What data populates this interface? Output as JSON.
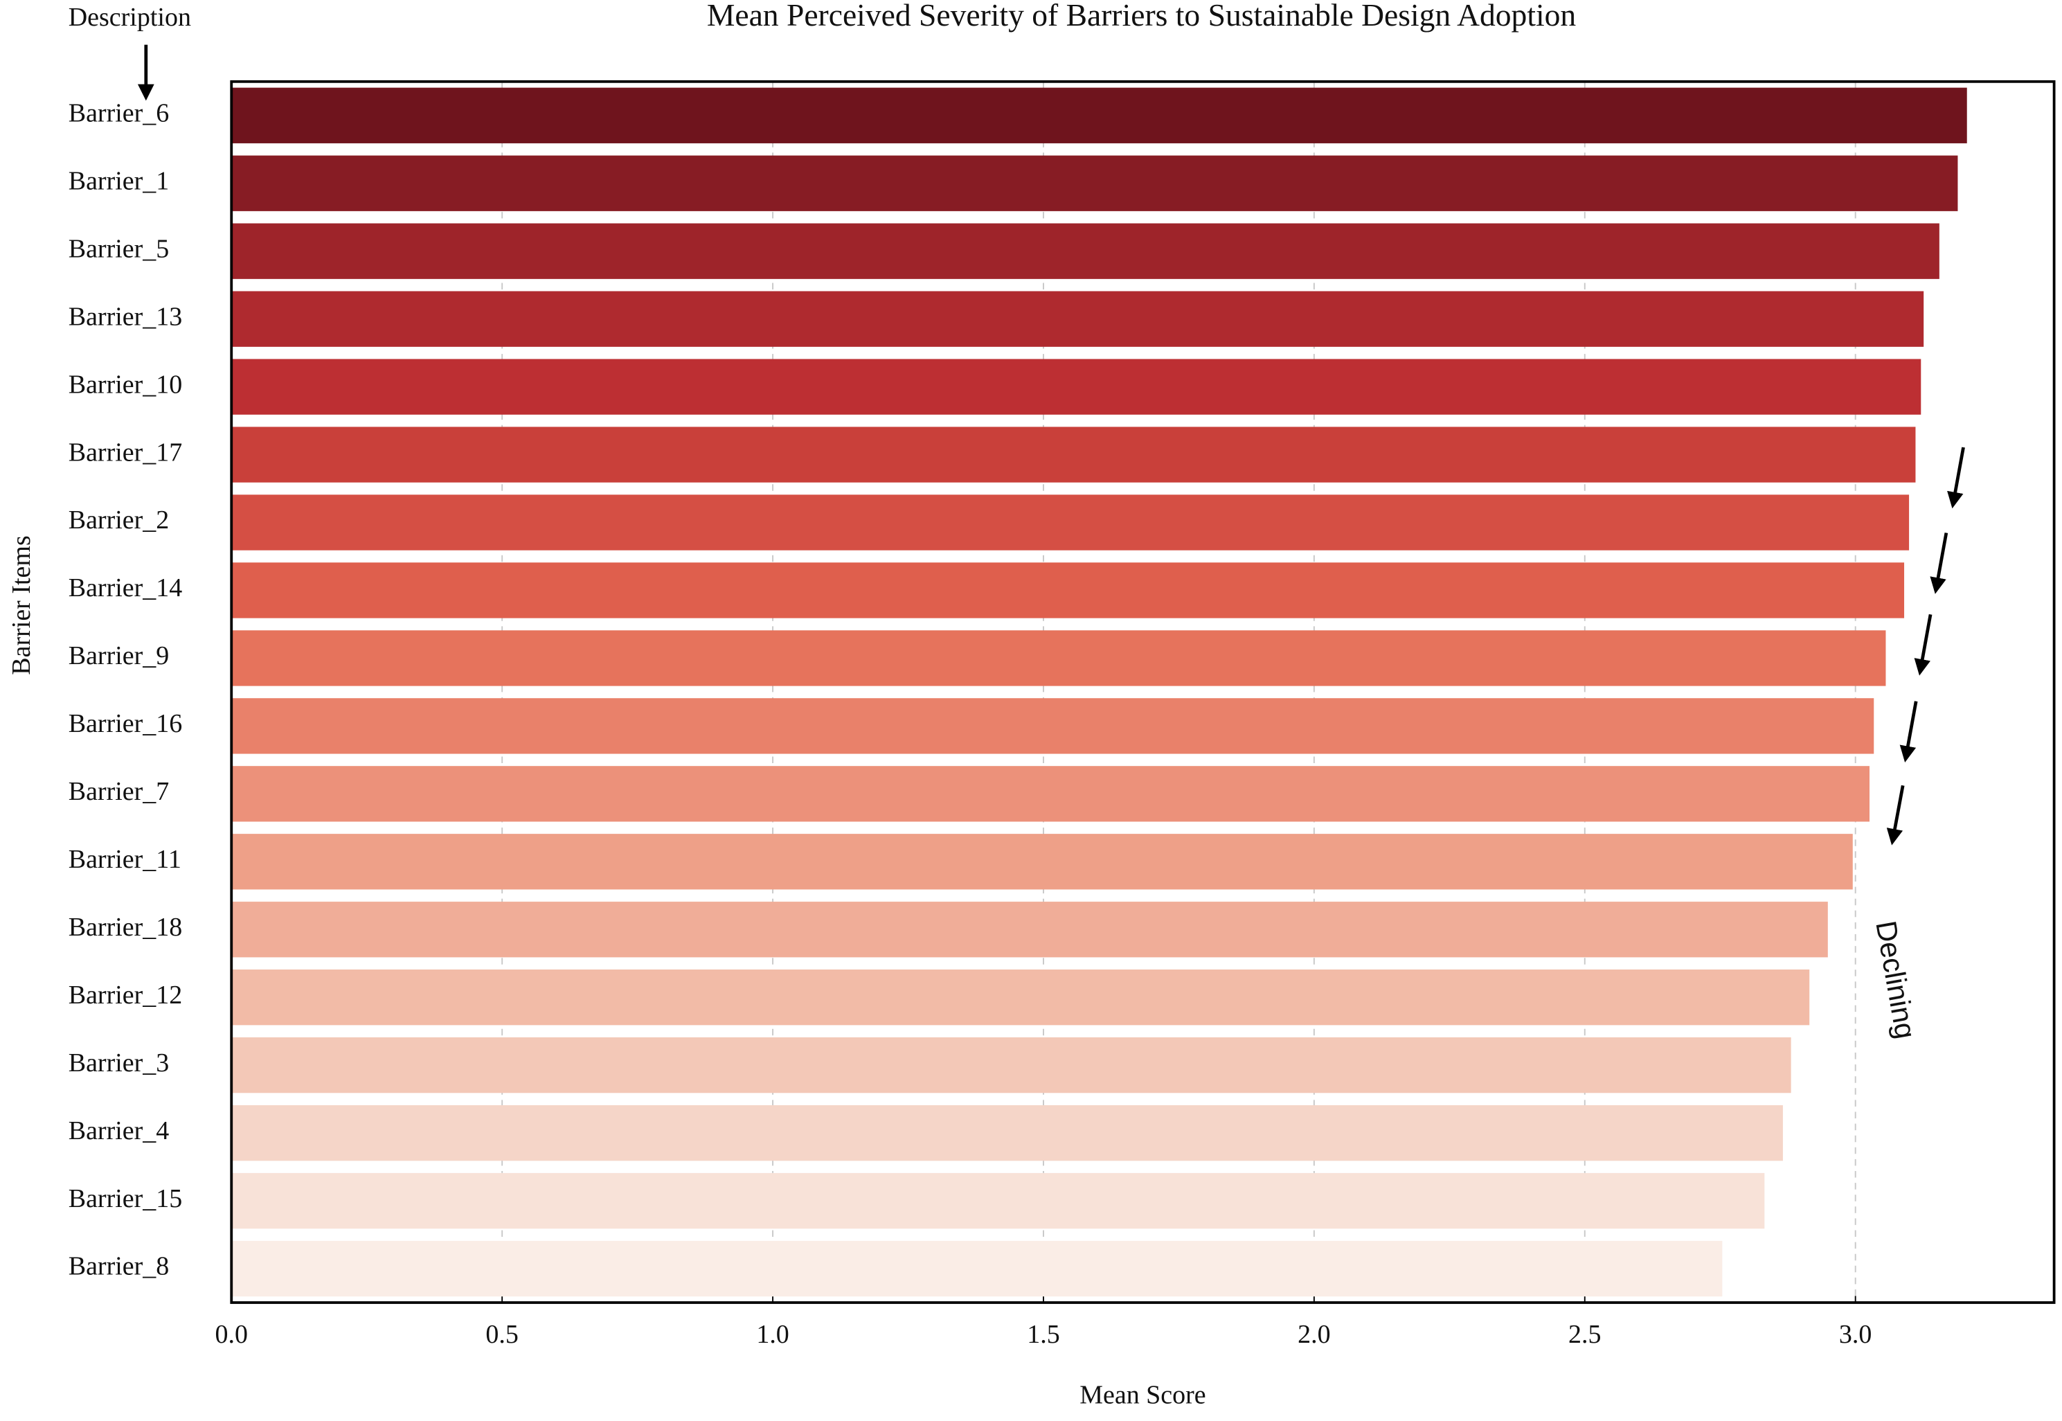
{
  "chart_data": {
    "type": "barh",
    "title": "Mean Perceived Severity of Barriers to Sustainable Design Adoption",
    "xlabel": "Mean Score",
    "ylabel": "Barrier Items",
    "annotations": [
      "Description",
      "Declining"
    ],
    "categories": [
      "Barrier_6",
      "Barrier_1",
      "Barrier_5",
      "Barrier_13",
      "Barrier_10",
      "Barrier_17",
      "Barrier_2",
      "Barrier_14",
      "Barrier_9",
      "Barrier_16",
      "Barrier_7",
      "Barrier_11",
      "Barrier_18",
      "Barrier_12",
      "Barrier_3",
      "Barrier_4",
      "Barrier_15",
      "Barrier_8"
    ],
    "values": [
      3.206,
      3.189,
      3.155,
      3.126,
      3.121,
      3.111,
      3.099,
      3.09,
      3.056,
      3.034,
      3.026,
      2.995,
      2.949,
      2.915,
      2.881,
      2.866,
      2.832,
      2.754
    ],
    "colors": [
      "#6f141d",
      "#871c24",
      "#9e242a",
      "#af2a2f",
      "#bd2f33",
      "#c9403a",
      "#d54f44",
      "#df5f4d",
      "#e6735c",
      "#e9816a",
      "#ec917a",
      "#eea088",
      "#f0ad98",
      "#f2bba7",
      "#f3c8b7",
      "#f5d5c8",
      "#f8e2d8",
      "#faede6"
    ],
    "xlim": [
      0,
      3.367
    ],
    "xticks": [
      {
        "value": 0,
        "label": "0.0"
      },
      {
        "value": 0.5,
        "label": "0.5"
      },
      {
        "value": 1,
        "label": "1.0"
      },
      {
        "value": 1.5,
        "label": "1.5"
      },
      {
        "value": 2,
        "label": "2.0"
      },
      {
        "value": 2.5,
        "label": "2.5"
      },
      {
        "value": 3,
        "label": "3.0"
      }
    ],
    "grid": true
  }
}
